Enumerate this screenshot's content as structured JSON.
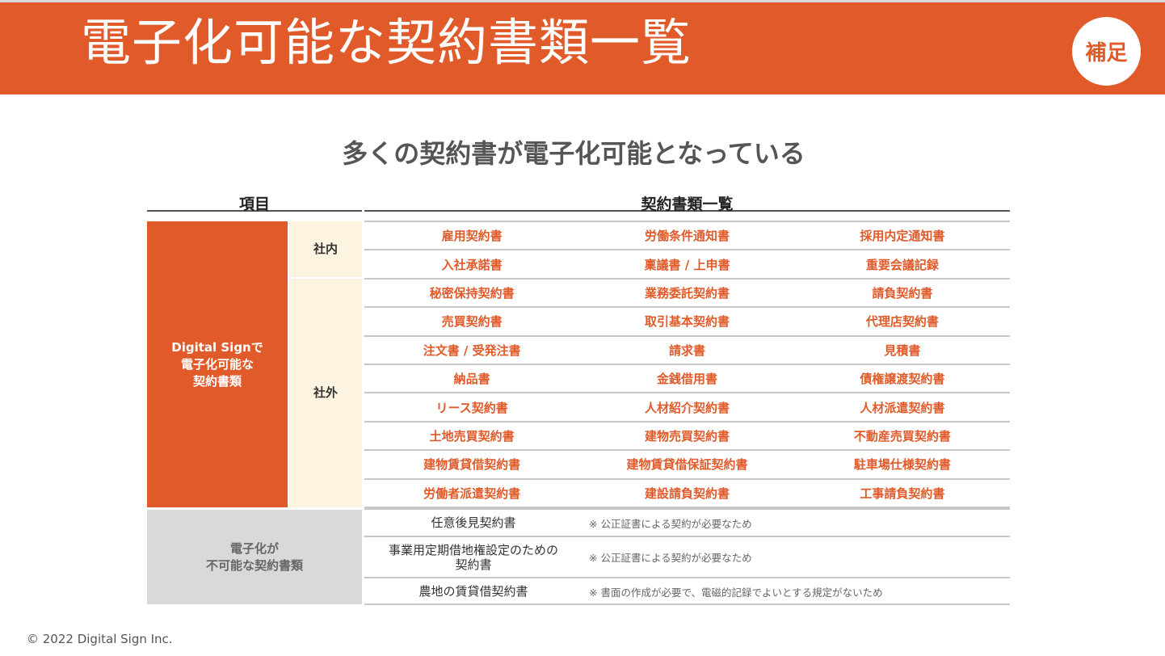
{
  "header": {
    "title": "電子化可能な契約書類一覧",
    "badge": "補足"
  },
  "subtitle": "多くの契約書が電子化可能となっている",
  "table": {
    "col_item": "項目",
    "col_list": "契約書類一覧",
    "possible_label": "Digital Signで\n電子化可能な\n契約書類",
    "internal_label": "社内",
    "external_label": "社外",
    "rows": [
      [
        "雇用契約書",
        "労働条件通知書",
        "採用内定通知書"
      ],
      [
        "入社承諾書",
        "稟議書 / 上申書",
        "重要会議記録"
      ],
      [
        "秘密保持契約書",
        "業務委託契約書",
        "請負契約書"
      ],
      [
        "売買契約書",
        "取引基本契約書",
        "代理店契約書"
      ],
      [
        "注文書 / 受発注書",
        "請求書",
        "見積書"
      ],
      [
        "納品書",
        "金銭借用書",
        "債権譲渡契約書"
      ],
      [
        "リース契約書",
        "人材紹介契約書",
        "人材派遣契約書"
      ],
      [
        "土地売買契約書",
        "建物売買契約書",
        "不動産売買契約書"
      ],
      [
        "建物賃貸借契約書",
        "建物賃貸借保証契約書",
        "駐車場仕様契約書"
      ],
      [
        "労働者派遣契約書",
        "建設請負契約書",
        "工事請負契約書"
      ]
    ],
    "impossible_label": "電子化が\n不可能な契約書類",
    "impossible_rows": [
      {
        "name": "任意後見契約書",
        "note": "※ 公正証書による契約が必要なため"
      },
      {
        "name": "事業用定期借地権設定のための\n契約書",
        "note": "※ 公正証書による契約が必要なため"
      },
      {
        "name": "農地の賃貸借契約書",
        "note": "※ 書面の作成が必要で、電磁的記録でよいとする規定がないため"
      }
    ]
  },
  "footer": "© 2022 Digital Sign Inc.",
  "colors": {
    "accent": "#e05a2a",
    "internal_bg": "#fdf3e1",
    "impossible_bg": "#d9d9d9"
  }
}
